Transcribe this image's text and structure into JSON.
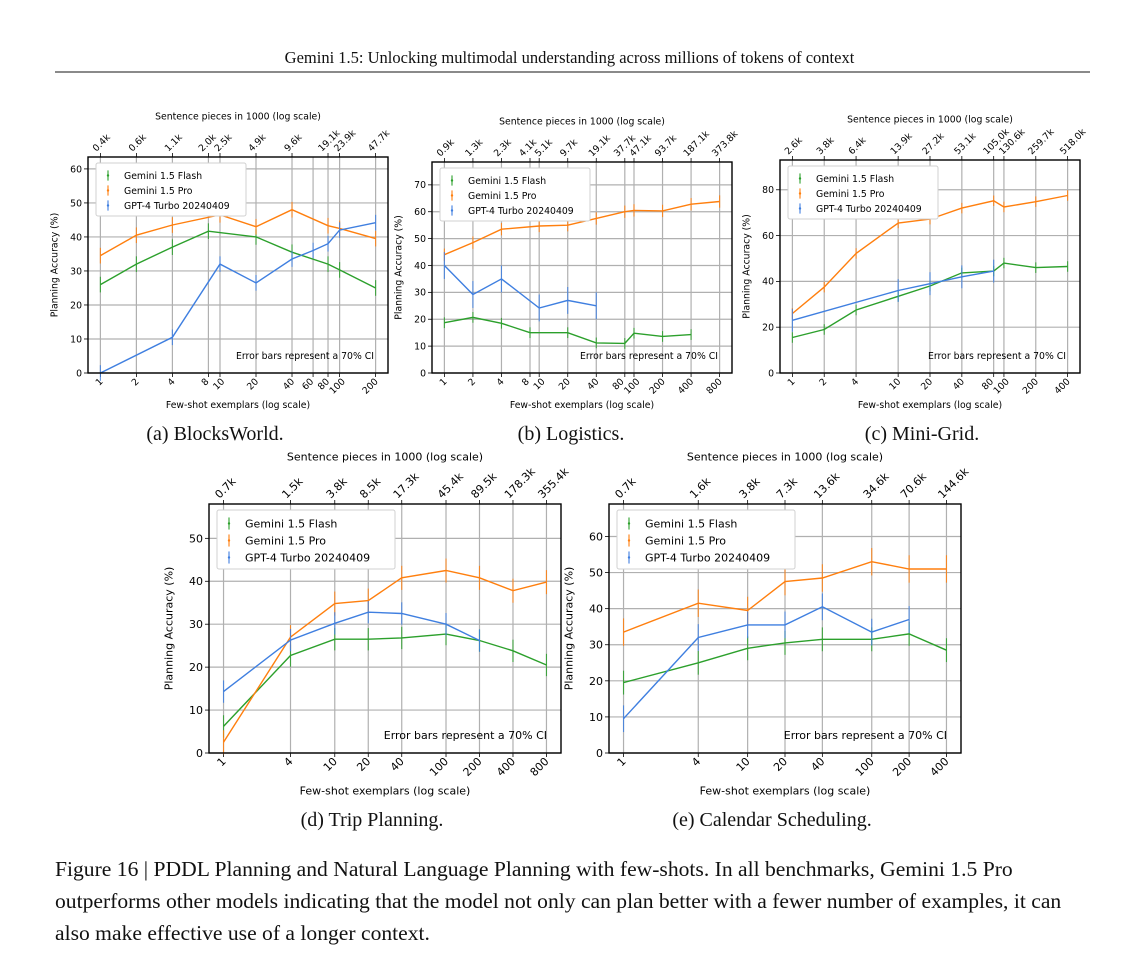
{
  "header": {
    "running_title": "Gemini 1.5: Unlocking multimodal understanding across millions of tokens of context"
  },
  "colors": {
    "flash": "#2ca02c",
    "pro": "#ff7f0e",
    "gpt4": "#3f7fe0",
    "grid": "#b0b0b0"
  },
  "subcaptions": [
    "(a) BlocksWorld.",
    "(b) Logistics.",
    "(c) Mini-Grid.",
    "(d) Trip Planning.",
    "(e) Calendar Scheduling."
  ],
  "figure_caption": "Figure 16 | PDDL Planning and Natural Language Planning with few-shots. In all benchmarks, Gemini 1.5 Pro outperforms other models indicating that the model not only can plan better with a fewer number of examples, it can also make effective use of a longer context.",
  "chart_data": [
    {
      "type": "line",
      "title": "",
      "xscale": "log",
      "grid": true,
      "legend_placement": "top-left",
      "xlabel": "Few-shot exemplars (log scale)",
      "ylabel": "Planning Accuracy (%)",
      "top_xlabel": "Sentence pieces in 1000 (log scale)",
      "x_ticks": [
        1,
        2,
        4,
        8,
        10,
        20,
        40,
        60,
        80,
        100,
        200
      ],
      "top_ticks": [
        {
          "x": 1,
          "label": "0.4k"
        },
        {
          "x": 2,
          "label": "0.6k"
        },
        {
          "x": 4,
          "label": "1.1k"
        },
        {
          "x": 8,
          "label": "2.0k"
        },
        {
          "x": 10,
          "label": "2.5k"
        },
        {
          "x": 20,
          "label": "4.9k"
        },
        {
          "x": 40,
          "label": "9.6k"
        },
        {
          "x": 80,
          "label": "19.1k"
        },
        {
          "x": 100,
          "label": "23.9k"
        },
        {
          "x": 200,
          "label": "47.7k"
        }
      ],
      "y_ticks": [
        0,
        10,
        20,
        30,
        40,
        50,
        60
      ],
      "ylim": [
        0,
        63.5
      ],
      "annotation": "Error bars represent a 70% CI",
      "series": [
        {
          "name": "Gemini 1.5 Flash",
          "color_key": "flash",
          "err": 2.3,
          "x": [
            1,
            2,
            4,
            8,
            20,
            40,
            80,
            100,
            200
          ],
          "y": [
            26,
            32,
            37,
            41.7,
            40,
            35.5,
            32,
            30.3,
            25
          ]
        },
        {
          "name": "Gemini 1.5 Pro",
          "color_key": "pro",
          "err": 2.3,
          "x": [
            1,
            2,
            4,
            10,
            20,
            40,
            80,
            100,
            200
          ],
          "y": [
            34.5,
            40.5,
            43.5,
            46.5,
            43,
            48,
            43.3,
            42.5,
            39.5
          ]
        },
        {
          "name": "GPT-4 Turbo 20240409",
          "color_key": "gpt4",
          "err": 2.3,
          "x": [
            1,
            4,
            10,
            20,
            40,
            60,
            80,
            100,
            200
          ],
          "y": [
            0,
            10.5,
            32,
            26.5,
            33.5,
            36,
            38,
            42,
            44.2
          ]
        }
      ]
    },
    {
      "type": "line",
      "title": "",
      "xscale": "log",
      "grid": true,
      "legend_placement": "top-left",
      "xlabel": "Few-shot exemplars (log scale)",
      "ylabel": "Planning Accuracy (%)",
      "top_xlabel": "Sentence pieces in 1000 (log scale)",
      "x_ticks": [
        1,
        2,
        4,
        8,
        10,
        20,
        40,
        80,
        100,
        200,
        400,
        800
      ],
      "top_ticks": [
        {
          "x": 1,
          "label": "0.9k"
        },
        {
          "x": 2,
          "label": "1.3k"
        },
        {
          "x": 4,
          "label": "2.3k"
        },
        {
          "x": 8,
          "label": "4.1k"
        },
        {
          "x": 10,
          "label": "5.1k"
        },
        {
          "x": 20,
          "label": "9.7k"
        },
        {
          "x": 40,
          "label": "19.1k"
        },
        {
          "x": 80,
          "label": "37.7k"
        },
        {
          "x": 100,
          "label": "47.1k"
        },
        {
          "x": 200,
          "label": "93.7k"
        },
        {
          "x": 400,
          "label": "187.1k"
        },
        {
          "x": 800,
          "label": "373.8k"
        }
      ],
      "y_ticks": [
        0,
        10,
        20,
        30,
        40,
        50,
        60,
        70
      ],
      "ylim": [
        0,
        78.5
      ],
      "annotation": "Error bars represent a 70% CI",
      "series": [
        {
          "name": "Gemini 1.5 Flash",
          "color_key": "flash",
          "err": 2,
          "x": [
            1,
            2,
            4,
            8,
            20,
            40,
            80,
            100,
            200,
            400
          ],
          "y": [
            18.7,
            20.7,
            18.5,
            15,
            15,
            11.2,
            11,
            14.8,
            13.6,
            14.3
          ]
        },
        {
          "name": "Gemini 1.5 Pro",
          "color_key": "pro",
          "err": 2.3,
          "x": [
            1,
            2,
            4,
            10,
            20,
            40,
            80,
            100,
            200,
            400,
            800
          ],
          "y": [
            44,
            48.5,
            53.5,
            54.7,
            55,
            57.5,
            60,
            60.5,
            60.3,
            62.8,
            63.8
          ]
        },
        {
          "name": "GPT-4 Turbo 20240409",
          "color_key": "gpt4",
          "err": 5,
          "x": [
            1,
            2,
            4,
            10,
            20,
            40
          ],
          "y": [
            40,
            29.2,
            35,
            24.2,
            27,
            25
          ]
        }
      ]
    },
    {
      "type": "line",
      "title": "",
      "xscale": "log",
      "grid": true,
      "legend_placement": "top-left",
      "xlabel": "Few-shot exemplars (log scale)",
      "ylabel": "Planning Accuracy (%)",
      "top_xlabel": "Sentence pieces in 1000 (log scale)",
      "x_ticks": [
        1,
        2,
        4,
        10,
        20,
        40,
        80,
        100,
        200,
        400
      ],
      "top_ticks": [
        {
          "x": 1,
          "label": "2.6k"
        },
        {
          "x": 2,
          "label": "3.8k"
        },
        {
          "x": 4,
          "label": "6.4k"
        },
        {
          "x": 10,
          "label": "13.9k"
        },
        {
          "x": 20,
          "label": "27.2k"
        },
        {
          "x": 40,
          "label": "53.1k"
        },
        {
          "x": 80,
          "label": "105.0k"
        },
        {
          "x": 100,
          "label": "130.6k"
        },
        {
          "x": 200,
          "label": "259.7k"
        },
        {
          "x": 400,
          "label": "518.0k"
        }
      ],
      "y_ticks": [
        0,
        20,
        40,
        60,
        80
      ],
      "ylim": [
        0,
        93
      ],
      "annotation": "Error bars represent a 70% CI",
      "series": [
        {
          "name": "Gemini 1.5 Flash",
          "color_key": "flash",
          "err": 2.3,
          "x": [
            1,
            2,
            4,
            10,
            20,
            40,
            80,
            100,
            200,
            400
          ],
          "y": [
            15.5,
            19,
            27.5,
            33.5,
            38,
            43.7,
            44.5,
            48,
            46,
            46.5
          ]
        },
        {
          "name": "Gemini 1.5 Pro",
          "color_key": "pro",
          "err": 2.3,
          "x": [
            1,
            2,
            4,
            10,
            20,
            40,
            80,
            100,
            200,
            400
          ],
          "y": [
            26,
            37.5,
            52.2,
            65.5,
            67.2,
            72,
            75.2,
            72.5,
            74.8,
            77.5
          ]
        },
        {
          "name": "GPT-4 Turbo 20240409",
          "color_key": "gpt4",
          "err": 5,
          "x": [
            1,
            10,
            20,
            40,
            80
          ],
          "y": [
            23,
            36,
            39,
            42,
            44.5
          ]
        }
      ]
    },
    {
      "type": "line",
      "title": "",
      "xscale": "log",
      "grid": true,
      "legend_placement": "top-left",
      "xlabel": "Few-shot exemplars (log scale)",
      "ylabel": "Planning Accuracy (%)",
      "top_xlabel": "Sentence pieces in 1000 (log scale)",
      "x_ticks": [
        1,
        4,
        10,
        20,
        40,
        100,
        200,
        400,
        800
      ],
      "top_ticks": [
        {
          "x": 1,
          "label": "0.7k"
        },
        {
          "x": 4,
          "label": "1.5k"
        },
        {
          "x": 10,
          "label": "3.8k"
        },
        {
          "x": 20,
          "label": "8.5k"
        },
        {
          "x": 40,
          "label": "17.3k"
        },
        {
          "x": 100,
          "label": "45.4k"
        },
        {
          "x": 200,
          "label": "89.5k"
        },
        {
          "x": 400,
          "label": "178.3k"
        },
        {
          "x": 800,
          "label": "355.4k"
        }
      ],
      "y_ticks": [
        0,
        10,
        20,
        30,
        40,
        50
      ],
      "ylim": [
        0,
        58
      ],
      "annotation": "Error bars represent a 70% CI",
      "series": [
        {
          "name": "Gemini 1.5 Flash",
          "color_key": "flash",
          "err": 2.6,
          "x": [
            1,
            4,
            10,
            20,
            40,
            100,
            200,
            400,
            800
          ],
          "y": [
            6.2,
            22.7,
            26.5,
            26.5,
            26.8,
            27.7,
            26.2,
            23.8,
            20.5
          ]
        },
        {
          "name": "Gemini 1.5 Pro",
          "color_key": "pro",
          "err": 2.8,
          "x": [
            1,
            4,
            10,
            20,
            40,
            100,
            200,
            400,
            800
          ],
          "y": [
            2.5,
            27,
            34.8,
            35.5,
            40.8,
            42.5,
            40.8,
            37.8,
            39.8
          ]
        },
        {
          "name": "GPT-4 Turbo 20240409",
          "color_key": "gpt4",
          "err": 2.6,
          "x": [
            1,
            4,
            10,
            20,
            40,
            100,
            200
          ],
          "y": [
            14.3,
            26.3,
            30.2,
            32.8,
            32.5,
            30,
            26.2
          ]
        }
      ]
    },
    {
      "type": "line",
      "title": "",
      "xscale": "log",
      "grid": true,
      "legend_placement": "top-left",
      "xlabel": "Few-shot exemplars (log scale)",
      "ylabel": "Planning Accuracy (%)",
      "top_xlabel": "Sentence pieces in 1000 (log scale)",
      "x_ticks": [
        1,
        4,
        10,
        20,
        40,
        100,
        200,
        400
      ],
      "top_ticks": [
        {
          "x": 1,
          "label": "0.7k"
        },
        {
          "x": 4,
          "label": "1.6k"
        },
        {
          "x": 10,
          "label": "3.8k"
        },
        {
          "x": 20,
          "label": "7.3k"
        },
        {
          "x": 40,
          "label": "13.6k"
        },
        {
          "x": 100,
          "label": "34.6k"
        },
        {
          "x": 200,
          "label": "70.6k"
        },
        {
          "x": 400,
          "label": "144.6k"
        }
      ],
      "y_ticks": [
        0,
        10,
        20,
        30,
        40,
        50,
        60
      ],
      "ylim": [
        0,
        69
      ],
      "annotation": "Error bars represent a 70% CI",
      "series": [
        {
          "name": "Gemini 1.5 Flash",
          "color_key": "flash",
          "err": 3.3,
          "x": [
            1,
            4,
            10,
            20,
            40,
            100,
            200,
            400
          ],
          "y": [
            19.5,
            25,
            29,
            30.5,
            31.5,
            31.5,
            33,
            28.5
          ]
        },
        {
          "name": "Gemini 1.5 Pro",
          "color_key": "pro",
          "err": 3.8,
          "x": [
            1,
            4,
            10,
            20,
            40,
            100,
            200,
            400
          ],
          "y": [
            33.5,
            41.5,
            39.5,
            47.5,
            48.5,
            53,
            51,
            51
          ]
        },
        {
          "name": "GPT-4 Turbo 20240409",
          "color_key": "gpt4",
          "err": 3.7,
          "x": [
            1,
            4,
            10,
            20,
            40,
            100,
            200
          ],
          "y": [
            9.5,
            32,
            35.5,
            35.5,
            40.5,
            33.5,
            37
          ]
        }
      ]
    }
  ]
}
